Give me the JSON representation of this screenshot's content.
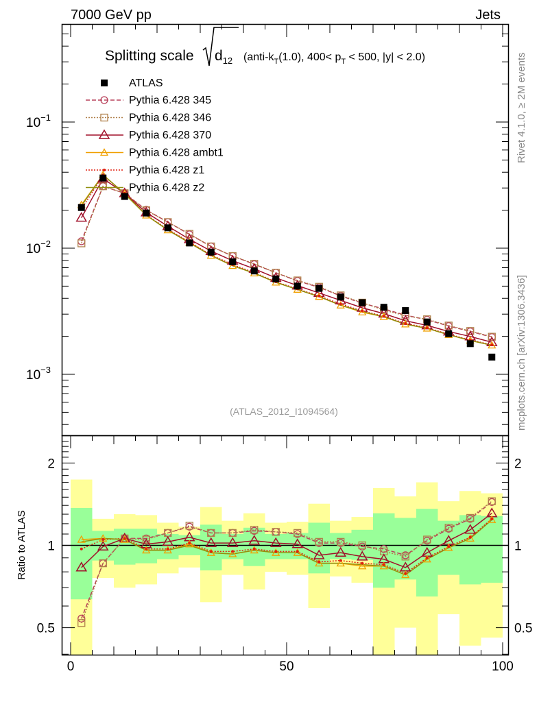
{
  "header": {
    "left": "7000 GeV pp",
    "right": "Jets"
  },
  "side_text": {
    "top": "Rivet 4.1.0, ≥ 2M events",
    "bottom": "mcplots.cern.ch [arXiv:1306.3436]"
  },
  "chart_data": {
    "type": "scatter",
    "title": "Splitting scale √d12 (anti-kT(1.0), 400< pT < 500, |y| < 2.0)",
    "title_parts": {
      "main": "Splitting scale",
      "sym": "d",
      "sub12": "12",
      "rest1": "(anti-k",
      "subT": "T",
      "rest2": "(1.0), 400< p",
      "subT2": "T",
      "rest3": " < 500, |y| < 2.0)"
    },
    "analysis_label": "(ATLAS_2012_I1094564)",
    "xlim": [
      0,
      100
    ],
    "x_ticks": [
      "0",
      "50",
      "100"
    ],
    "main_ylim": [
      0.00033,
      0.6
    ],
    "main_yscale": "log",
    "main_y_ticks": [
      {
        "v": 0.1,
        "label": "10",
        "exp": "−1"
      },
      {
        "v": 0.01,
        "label": "10",
        "exp": "−2"
      },
      {
        "v": 0.001,
        "label": "10",
        "exp": "−3"
      }
    ],
    "ratio_ylabel": "Ratio to ATLAS",
    "ratio_ylim": [
      0.4,
      2.5
    ],
    "ratio_y_ticks": [
      "0.5",
      "1",
      "2"
    ],
    "x": [
      2.5,
      7.5,
      12.5,
      17.5,
      22.5,
      27.5,
      32.5,
      37.5,
      42.5,
      47.5,
      52.5,
      57.5,
      62.5,
      67.5,
      72.5,
      77.5,
      82.5,
      87.5,
      92.5,
      97.5
    ],
    "data": {
      "name": "ATLAS",
      "values": [
        0.021,
        0.036,
        0.0257,
        0.019,
        0.0145,
        0.011,
        0.0093,
        0.0078,
        0.0066,
        0.0057,
        0.005,
        0.0048,
        0.0041,
        0.0037,
        0.0034,
        0.0032,
        0.0026,
        0.0021,
        0.00175,
        0.00137
      ]
    },
    "band_inner": {
      "hi": [
        1.37,
        1.13,
        1.15,
        1.15,
        1.1,
        1.09,
        1.19,
        1.1,
        1.16,
        1.1,
        1.11,
        1.21,
        1.11,
        1.14,
        1.31,
        1.26,
        1.36,
        1.23,
        1.29,
        1.28
      ],
      "lo": [
        0.635,
        0.88,
        0.85,
        0.86,
        0.89,
        0.92,
        0.81,
        0.89,
        0.84,
        0.89,
        0.89,
        0.79,
        0.89,
        0.885,
        0.7,
        0.75,
        0.65,
        0.78,
        0.72,
        0.73
      ]
    },
    "band_outer": {
      "hi": [
        1.74,
        1.25,
        1.3,
        1.29,
        1.21,
        1.17,
        1.38,
        1.23,
        1.31,
        1.21,
        1.22,
        1.42,
        1.23,
        1.27,
        1.62,
        1.51,
        1.7,
        1.45,
        1.58,
        1.55
      ],
      "lo": [
        0.3,
        0.76,
        0.7,
        0.72,
        0.79,
        0.83,
        0.62,
        0.78,
        0.69,
        0.8,
        0.78,
        0.59,
        0.77,
        0.73,
        0.3,
        0.5,
        0.3,
        0.56,
        0.43,
        0.46
      ]
    },
    "series": [
      {
        "name": "Pythia 6.428 345",
        "color": "#b8405a",
        "marker": "circle",
        "dash": "6,3",
        "ratio": [
          0.54,
          0.86,
          1.06,
          1.06,
          1.11,
          1.17,
          1.11,
          1.11,
          1.13,
          1.12,
          1.1,
          1.02,
          1.02,
          0.99,
          0.97,
          0.92,
          1.04,
          1.15,
          1.25,
          1.44
        ]
      },
      {
        "name": "Pythia 6.428 346",
        "color": "#b0804a",
        "marker": "square",
        "dash": "2,2",
        "ratio": [
          0.52,
          0.86,
          1.06,
          1.05,
          1.11,
          1.18,
          1.11,
          1.11,
          1.14,
          1.12,
          1.11,
          1.03,
          1.03,
          1.0,
          0.95,
          0.91,
          1.05,
          1.16,
          1.26,
          1.45
        ]
      },
      {
        "name": "Pythia 6.428 370",
        "color": "#a0102a",
        "marker": "triangle",
        "dash": "",
        "ratio": [
          0.83,
          0.99,
          1.06,
          1.01,
          1.03,
          1.07,
          1.02,
          1.02,
          1.04,
          1.02,
          1.01,
          0.92,
          0.94,
          0.91,
          0.89,
          0.83,
          0.94,
          1.04,
          1.14,
          1.31
        ]
      },
      {
        "name": "Pythia 6.428 ambt1",
        "color": "#f0a000",
        "marker": "triangle-small",
        "dash": "",
        "ratio": [
          1.05,
          1.06,
          1.05,
          0.96,
          0.96,
          1.01,
          0.94,
          0.93,
          0.96,
          0.94,
          0.94,
          0.86,
          0.86,
          0.84,
          0.84,
          0.78,
          0.89,
          0.98,
          1.06,
          1.24
        ]
      },
      {
        "name": "Pythia 6.428 z1",
        "color": "#e02010",
        "marker": "dot",
        "dash": "2,2",
        "ratio": [
          0.97,
          1.05,
          1.06,
          0.97,
          0.97,
          1.02,
          0.95,
          0.95,
          0.97,
          0.95,
          0.95,
          0.87,
          0.88,
          0.86,
          0.85,
          0.79,
          0.9,
          0.99,
          1.07,
          1.25
        ]
      },
      {
        "name": "Pythia 6.428 z2",
        "color": "#909010",
        "marker": "none",
        "dash": "",
        "ratio": [
          1.03,
          1.06,
          1.05,
          0.96,
          0.96,
          1.0,
          0.94,
          0.93,
          0.96,
          0.94,
          0.94,
          0.86,
          0.86,
          0.85,
          0.84,
          0.78,
          0.89,
          0.98,
          1.06,
          1.24
        ]
      }
    ]
  }
}
